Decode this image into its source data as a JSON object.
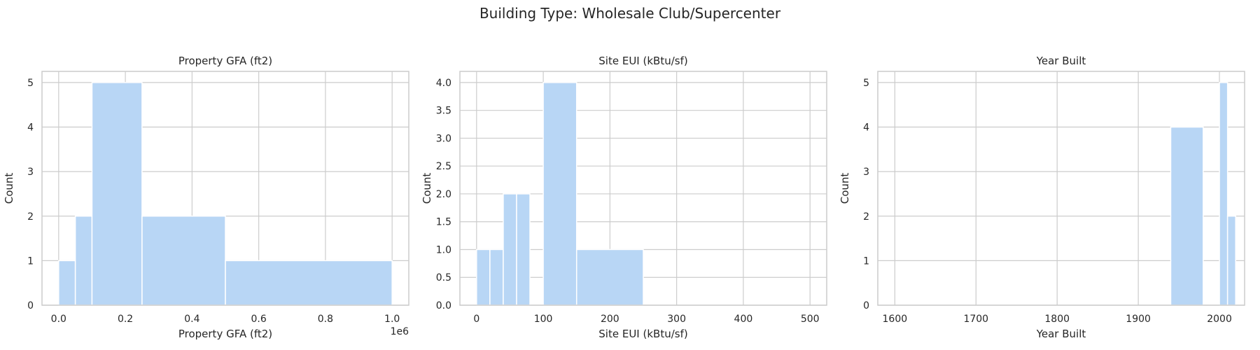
{
  "figure": {
    "suptitle": "Building Type: Wholesale Club/Supercenter"
  },
  "colors": {
    "bar": "#b8d6f5",
    "grid": "#cccccc",
    "spine": "#cccccc",
    "text": "#262626"
  },
  "chart_data": [
    {
      "type": "histogram",
      "title": "Property GFA (ft2)",
      "xlabel": "Property GFA (ft2)",
      "ylabel": "Count",
      "offset_label": "1e6",
      "xlim": [
        -50000,
        1050000
      ],
      "ylim": [
        0,
        5.25
      ],
      "xticks": [
        0,
        200000,
        400000,
        600000,
        800000,
        1000000
      ],
      "xtick_labels": [
        "0.0",
        "0.2",
        "0.4",
        "0.6",
        "0.8",
        "1.0"
      ],
      "yticks": [
        0,
        1,
        2,
        3,
        4,
        5
      ],
      "ytick_labels": [
        "0",
        "1",
        "2",
        "3",
        "4",
        "5"
      ],
      "bins": [
        {
          "start": 0,
          "end": 50000,
          "count": 1
        },
        {
          "start": 50000,
          "end": 100000,
          "count": 2
        },
        {
          "start": 100000,
          "end": 250000,
          "count": 5
        },
        {
          "start": 250000,
          "end": 500000,
          "count": 2
        },
        {
          "start": 500000,
          "end": 1000000,
          "count": 1
        }
      ],
      "grid": true
    },
    {
      "type": "histogram",
      "title": "Site EUI (kBtu/sf)",
      "xlabel": "Site EUI (kBtu/sf)",
      "ylabel": "Count",
      "xlim": [
        -25,
        525
      ],
      "ylim": [
        0,
        4.2
      ],
      "xticks": [
        0,
        100,
        200,
        300,
        400,
        500
      ],
      "xtick_labels": [
        "0",
        "100",
        "200",
        "300",
        "400",
        "500"
      ],
      "yticks": [
        0,
        0.5,
        1,
        1.5,
        2,
        2.5,
        3,
        3.5,
        4
      ],
      "ytick_labels": [
        "0.0",
        "0.5",
        "1.0",
        "1.5",
        "2.0",
        "2.5",
        "3.0",
        "3.5",
        "4.0"
      ],
      "bins": [
        {
          "start": 0,
          "end": 20,
          "count": 1
        },
        {
          "start": 20,
          "end": 40,
          "count": 1
        },
        {
          "start": 40,
          "end": 60,
          "count": 2
        },
        {
          "start": 60,
          "end": 80,
          "count": 2
        },
        {
          "start": 100,
          "end": 150,
          "count": 4
        },
        {
          "start": 150,
          "end": 250,
          "count": 1
        }
      ],
      "grid": true
    },
    {
      "type": "histogram",
      "title": "Year Built",
      "xlabel": "Year Built",
      "ylabel": "Count",
      "xlim": [
        1579,
        2031
      ],
      "ylim": [
        0,
        5.25
      ],
      "xticks": [
        1600,
        1700,
        1800,
        1900,
        2000
      ],
      "xtick_labels": [
        "1600",
        "1700",
        "1800",
        "1900",
        "2000"
      ],
      "yticks": [
        0,
        1,
        2,
        3,
        4,
        5
      ],
      "ytick_labels": [
        "0",
        "1",
        "2",
        "3",
        "4",
        "5"
      ],
      "bins": [
        {
          "start": 1940,
          "end": 1980,
          "count": 4
        },
        {
          "start": 2000,
          "end": 2010,
          "count": 5
        },
        {
          "start": 2010,
          "end": 2020,
          "count": 2
        }
      ],
      "grid": true
    }
  ]
}
